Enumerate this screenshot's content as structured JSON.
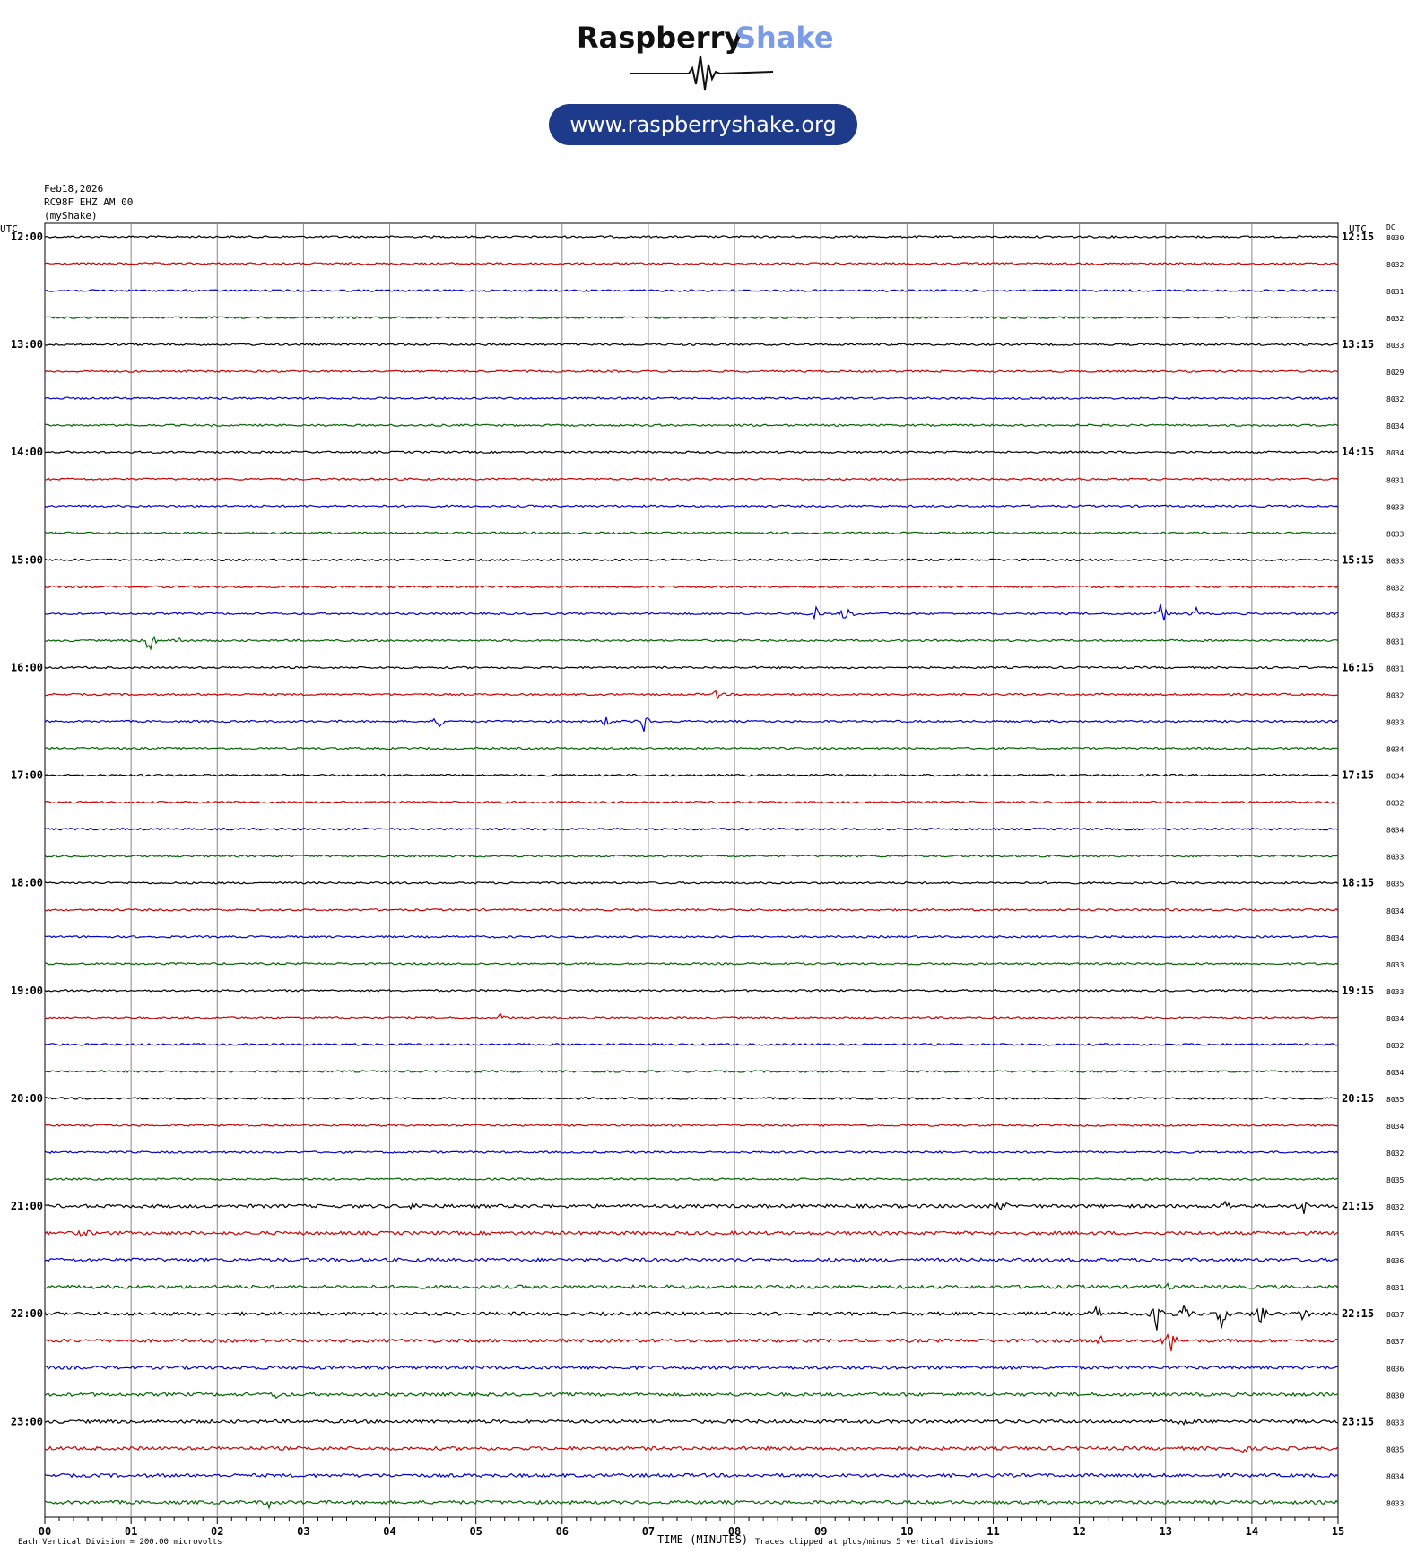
{
  "header": {
    "brand_word1": "Raspberry",
    "brand_word2": "Shake",
    "url": "www.raspberryshake.org",
    "colors": {
      "brand_dark": "#111111",
      "brand_light": "#7b9be6",
      "url_pill": "#1e3a8a"
    }
  },
  "meta": {
    "date": "Feb18,2026",
    "station": "RC98F EHZ AM 00",
    "owner": "(myShake)",
    "utc_left": "UTC",
    "utc_right": "UTC",
    "dc_header": "DC"
  },
  "footer": {
    "scale": "Each Vertical Division =  200.00 microvolts",
    "xaxis_title": "TIME (MINUTES)",
    "clip_note": "Traces clipped at plus/minus 5 vertical divisions"
  },
  "chart_data": {
    "type": "line",
    "title": "",
    "xlabel": "TIME (MINUTES)",
    "xlim": [
      0,
      15
    ],
    "x_ticks": [
      "00",
      "01",
      "02",
      "03",
      "04",
      "05",
      "06",
      "07",
      "08",
      "09",
      "10",
      "11",
      "12",
      "13",
      "14",
      "15"
    ],
    "grid": true,
    "trace_colors": [
      "#000000",
      "#cc0000",
      "#0000cc",
      "#006600"
    ],
    "rows": [
      {
        "left": "12:00",
        "right": "12:15",
        "dc": "8030",
        "events": []
      },
      {
        "left": "",
        "right": "",
        "dc": "8032",
        "events": []
      },
      {
        "left": "",
        "right": "",
        "dc": "8031",
        "events": []
      },
      {
        "left": "",
        "right": "",
        "dc": "8032",
        "events": []
      },
      {
        "left": "13:00",
        "right": "13:15",
        "dc": "8033",
        "events": []
      },
      {
        "left": "",
        "right": "",
        "dc": "8029",
        "events": []
      },
      {
        "left": "",
        "right": "",
        "dc": "8032",
        "events": []
      },
      {
        "left": "",
        "right": "",
        "dc": "8034",
        "events": []
      },
      {
        "left": "14:00",
        "right": "14:15",
        "dc": "8034",
        "events": []
      },
      {
        "left": "",
        "right": "",
        "dc": "8031",
        "events": []
      },
      {
        "left": "",
        "right": "",
        "dc": "8033",
        "events": []
      },
      {
        "left": "",
        "right": "",
        "dc": "8033",
        "events": []
      },
      {
        "left": "15:00",
        "right": "15:15",
        "dc": "8033",
        "events": []
      },
      {
        "left": "",
        "right": "",
        "dc": "8032",
        "events": []
      },
      {
        "left": "",
        "right": "",
        "dc": "8033",
        "events": [
          [
            8.95,
            0.5
          ],
          [
            9.3,
            0.8
          ],
          [
            12.95,
            1.0
          ],
          [
            13.35,
            0.4
          ]
        ]
      },
      {
        "left": "",
        "right": "",
        "dc": "8031",
        "events": [
          [
            1.22,
            1.2
          ],
          [
            1.55,
            0.4
          ]
        ]
      },
      {
        "left": "16:00",
        "right": "16:15",
        "dc": "8031",
        "events": []
      },
      {
        "left": "",
        "right": "",
        "dc": "8032",
        "events": [
          [
            7.8,
            0.3
          ]
        ]
      },
      {
        "left": "",
        "right": "",
        "dc": "8033",
        "events": [
          [
            4.57,
            0.5
          ],
          [
            6.5,
            0.4
          ],
          [
            6.95,
            0.7
          ]
        ]
      },
      {
        "left": "",
        "right": "",
        "dc": "8034",
        "events": []
      },
      {
        "left": "17:00",
        "right": "17:15",
        "dc": "8034",
        "events": []
      },
      {
        "left": "",
        "right": "",
        "dc": "8032",
        "events": []
      },
      {
        "left": "",
        "right": "",
        "dc": "8034",
        "events": []
      },
      {
        "left": "",
        "right": "",
        "dc": "8033",
        "events": []
      },
      {
        "left": "18:00",
        "right": "18:15",
        "dc": "8035",
        "events": []
      },
      {
        "left": "",
        "right": "",
        "dc": "8034",
        "events": []
      },
      {
        "left": "",
        "right": "",
        "dc": "8034",
        "events": []
      },
      {
        "left": "",
        "right": "",
        "dc": "8033",
        "events": []
      },
      {
        "left": "19:00",
        "right": "19:15",
        "dc": "8033",
        "events": []
      },
      {
        "left": "",
        "right": "",
        "dc": "8034",
        "events": [
          [
            5.3,
            0.3
          ]
        ]
      },
      {
        "left": "",
        "right": "",
        "dc": "8032",
        "events": []
      },
      {
        "left": "",
        "right": "",
        "dc": "8034",
        "events": []
      },
      {
        "left": "20:00",
        "right": "20:15",
        "dc": "8035",
        "events": []
      },
      {
        "left": "",
        "right": "",
        "dc": "8034",
        "events": []
      },
      {
        "left": "",
        "right": "",
        "dc": "8032",
        "events": []
      },
      {
        "left": "",
        "right": "",
        "dc": "8035",
        "events": []
      },
      {
        "left": "21:00",
        "right": "21:15",
        "dc": "8032",
        "events": [
          [
            4.3,
            0.3
          ],
          [
            11.1,
            0.4
          ],
          [
            13.7,
            0.4
          ],
          [
            14.6,
            0.5
          ]
        ]
      },
      {
        "left": "",
        "right": "",
        "dc": "8035",
        "events": [
          [
            0.45,
            0.3
          ]
        ]
      },
      {
        "left": "",
        "right": "",
        "dc": "8036",
        "events": []
      },
      {
        "left": "",
        "right": "",
        "dc": "8031",
        "events": [
          [
            13.0,
            0.3
          ]
        ]
      },
      {
        "left": "22:00",
        "right": "22:15",
        "dc": "8037",
        "events": [
          [
            12.2,
            0.6
          ],
          [
            12.9,
            1.0
          ],
          [
            13.2,
            0.7
          ],
          [
            13.65,
            0.9
          ],
          [
            14.1,
            1.1
          ],
          [
            14.6,
            0.6
          ]
        ]
      },
      {
        "left": "",
        "right": "",
        "dc": "8037",
        "events": [
          [
            12.25,
            0.3
          ],
          [
            13.05,
            1.2
          ]
        ]
      },
      {
        "left": "",
        "right": "",
        "dc": "8036",
        "events": []
      },
      {
        "left": "",
        "right": "",
        "dc": "8030",
        "events": [
          [
            2.7,
            0.3
          ]
        ]
      },
      {
        "left": "23:00",
        "right": "23:15",
        "dc": "8033",
        "events": [
          [
            13.2,
            0.3
          ]
        ]
      },
      {
        "left": "",
        "right": "",
        "dc": "8035",
        "events": [
          [
            13.9,
            0.3
          ]
        ]
      },
      {
        "left": "",
        "right": "",
        "dc": "8034",
        "events": []
      },
      {
        "left": "",
        "right": "",
        "dc": "8033",
        "events": [
          [
            2.6,
            0.3
          ]
        ]
      }
    ]
  }
}
